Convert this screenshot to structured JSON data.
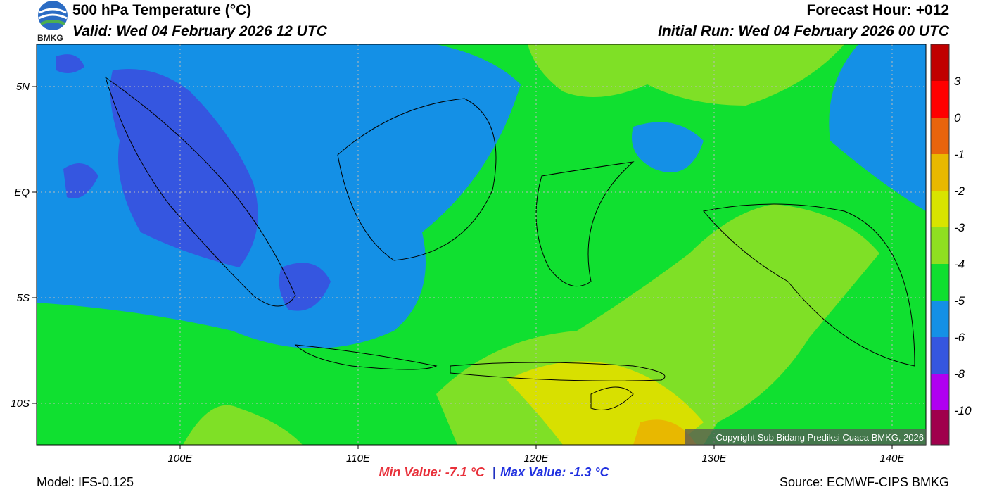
{
  "header": {
    "logo_text": "BMKG",
    "title": "500 hPa Temperature (°C)",
    "valid": "Valid: Wed 04 February 2026 12 UTC",
    "forecast_hour": "Forecast Hour: +012",
    "initial_run": "Initial Run: Wed 04 February 2026 00 UTC"
  },
  "map": {
    "lat_labels": [
      "5N",
      "EQ",
      "5S",
      "10S"
    ],
    "lon_labels": [
      "100E",
      "110E",
      "120E",
      "130E",
      "140E"
    ],
    "copyright": "Copyright Sub Bidang Prediksi Cuaca BMKG, 2026"
  },
  "colorbar": {
    "labels": [
      "3",
      "0",
      "-1",
      "-2",
      "-3",
      "-4",
      "-5",
      "-6",
      "-8",
      "-10"
    ]
  },
  "footer": {
    "model": "Model: IFS-0.125",
    "min_value": "Min Value: -7.1 °C",
    "separator": "|",
    "max_value": "Max Value: -1.3 °C",
    "source": "Source: ECMWF-CIPS BMKG"
  }
}
